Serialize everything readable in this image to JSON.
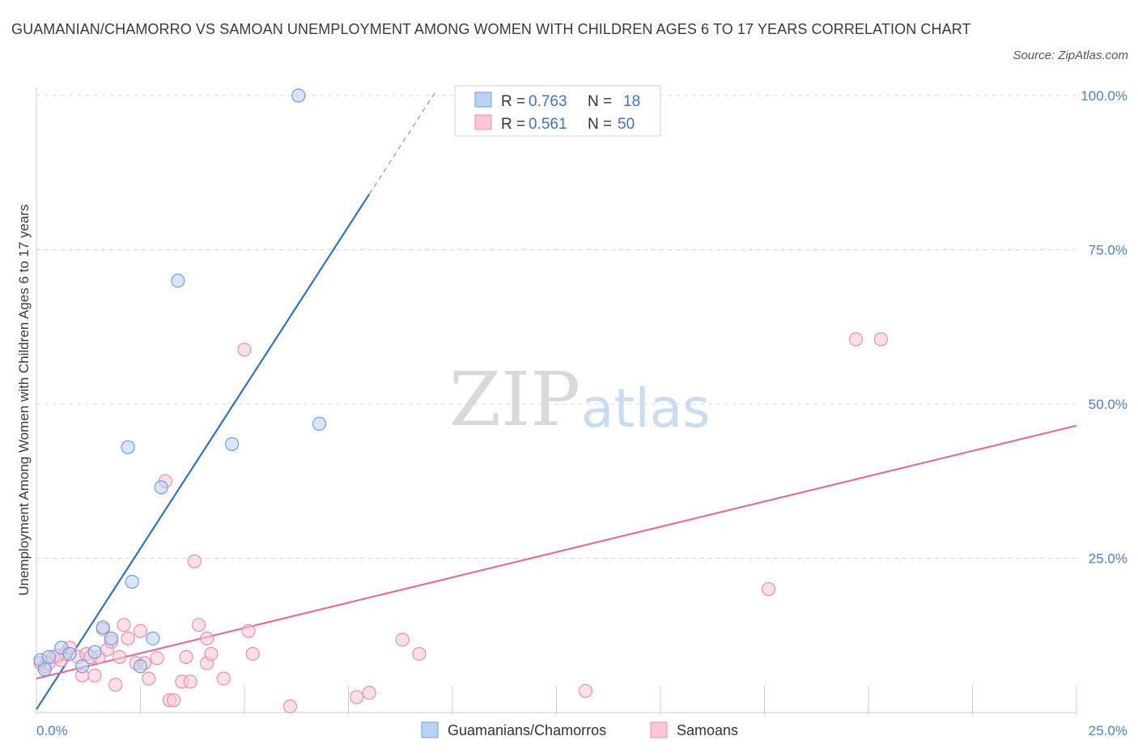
{
  "title": "GUAMANIAN/CHAMORRO VS SAMOAN UNEMPLOYMENT AMONG WOMEN WITH CHILDREN AGES 6 TO 17 YEARS CORRELATION CHART",
  "source": "Source: ZipAtlas.com",
  "watermark": {
    "zip": "ZIP",
    "atlas": "atlas"
  },
  "colors": {
    "blue_fill": "#b8d2f4",
    "blue_stroke": "#6f9ede",
    "blue_line": "#2f72c8",
    "pink_fill": "#f9c6d5",
    "pink_stroke": "#e98fad",
    "pink_line": "#e0709a",
    "grid": "#d9d9d9",
    "tick_text": "#4a7fcb"
  },
  "legend_box": {
    "rows": [
      {
        "r_label": "R = ",
        "r_value": "0.763",
        "n_label": "N = ",
        "n_value": "18",
        "color": "blue"
      },
      {
        "r_label": "R = ",
        "r_value": "0.561",
        "n_label": "N = ",
        "n_value": "50",
        "color": "pink"
      }
    ]
  },
  "chart_data": {
    "type": "scatter",
    "xlabel": "",
    "ylabel": "Unemployment Among Women with Children Ages 6 to 17 years",
    "xlim": [
      0,
      25
    ],
    "ylim": [
      0,
      100
    ],
    "x_tick_labels": [
      "0.0%",
      "25.0%"
    ],
    "y_tick_labels": [
      "25.0%",
      "50.0%",
      "75.0%",
      "100.0%"
    ],
    "y_ticks": [
      25,
      50,
      75,
      100
    ],
    "grid": true,
    "legend": "bottom-center",
    "series": [
      {
        "name": "Guamanians/Chamorros",
        "color": "#6f9ede",
        "points": [
          [
            0.1,
            8.5
          ],
          [
            0.3,
            9.0
          ],
          [
            0.6,
            10.5
          ],
          [
            0.8,
            9.5
          ],
          [
            1.1,
            7.5
          ],
          [
            1.4,
            9.8
          ],
          [
            1.6,
            13.8
          ],
          [
            1.8,
            12.0
          ],
          [
            2.2,
            43.0
          ],
          [
            2.3,
            21.2
          ],
          [
            2.5,
            7.5
          ],
          [
            2.8,
            12.0
          ],
          [
            3.0,
            36.5
          ],
          [
            3.4,
            70.0
          ],
          [
            4.7,
            43.5
          ],
          [
            6.3,
            100.0
          ],
          [
            6.8,
            46.8
          ],
          [
            0.2,
            7.0
          ]
        ],
        "trend": {
          "x0": 0.0,
          "y0": 0.5,
          "x1": 8.0,
          "y1": 84.0,
          "dash_to_x": 9.6
        }
      },
      {
        "name": "Samoans",
        "color": "#e98fad",
        "points": [
          [
            0.1,
            8.0
          ],
          [
            0.2,
            7.5
          ],
          [
            0.4,
            9.0
          ],
          [
            0.6,
            8.5
          ],
          [
            0.7,
            9.5
          ],
          [
            0.8,
            10.5
          ],
          [
            1.0,
            9.0
          ],
          [
            1.1,
            6.0
          ],
          [
            1.2,
            9.5
          ],
          [
            1.4,
            6.0
          ],
          [
            1.5,
            9.0
          ],
          [
            1.6,
            13.5
          ],
          [
            1.7,
            10.2
          ],
          [
            1.8,
            11.5
          ],
          [
            1.9,
            4.5
          ],
          [
            2.0,
            9.0
          ],
          [
            2.1,
            14.2
          ],
          [
            2.2,
            12.0
          ],
          [
            2.4,
            8.0
          ],
          [
            2.5,
            13.2
          ],
          [
            2.6,
            8.0
          ],
          [
            2.7,
            5.5
          ],
          [
            2.9,
            8.8
          ],
          [
            3.1,
            37.5
          ],
          [
            3.2,
            2.0
          ],
          [
            3.3,
            2.0
          ],
          [
            3.5,
            5.0
          ],
          [
            3.6,
            9.0
          ],
          [
            3.7,
            5.0
          ],
          [
            3.8,
            24.5
          ],
          [
            3.9,
            14.2
          ],
          [
            4.1,
            12.0
          ],
          [
            4.1,
            8.0
          ],
          [
            4.2,
            9.5
          ],
          [
            4.5,
            5.5
          ],
          [
            5.0,
            58.8
          ],
          [
            5.1,
            13.2
          ],
          [
            5.2,
            9.5
          ],
          [
            6.1,
            1.0
          ],
          [
            7.7,
            2.5
          ],
          [
            8.0,
            3.2
          ],
          [
            8.8,
            11.8
          ],
          [
            9.2,
            9.5
          ],
          [
            13.2,
            3.5
          ],
          [
            17.6,
            20.0
          ],
          [
            19.7,
            60.5
          ],
          [
            20.3,
            60.5
          ],
          [
            0.3,
            8.0
          ],
          [
            0.5,
            9.2
          ],
          [
            1.3,
            9.0
          ]
        ],
        "trend": {
          "x0": 0.0,
          "y0": 5.5,
          "x1": 25.0,
          "y1": 46.5
        }
      }
    ]
  }
}
